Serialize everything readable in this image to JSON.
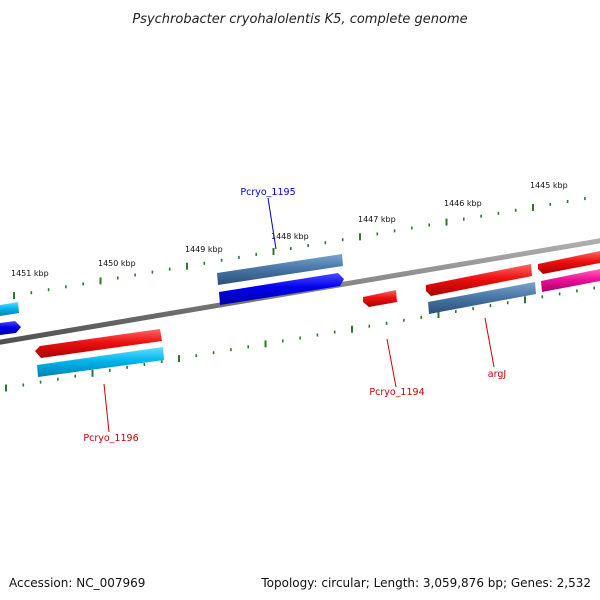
{
  "title": "Psychrobacter cryohalolentis K5, complete genome",
  "footer": {
    "accession": "Accession: NC_007969",
    "topology": "Topology: circular; Length: 3,059,876 bp; Genes: 2,532"
  },
  "tick_labels": [
    "1451 kbp",
    "1450 kbp",
    "1449 kbp",
    "1448 kbp",
    "1447 kbp",
    "1446 kbp",
    "1445 kbp"
  ],
  "genes": [
    {
      "label": "Pcryo_1195",
      "color": "#0000cc"
    },
    {
      "label": "Pcryo_1194",
      "color": "#cc0000"
    },
    {
      "label": "argJ",
      "color": "#cc0000"
    },
    {
      "label": "Pcryo_1196",
      "color": "#cc0000"
    }
  ],
  "colors": {
    "backbone": "#808080",
    "tick": "#2a7a2a",
    "red_gene": "#ee1111",
    "blue_gene": "#0000ee",
    "steel_gene": "#4a78a8",
    "cyan_gene": "#00b7ee",
    "magenta_gene": "#ee1199"
  }
}
